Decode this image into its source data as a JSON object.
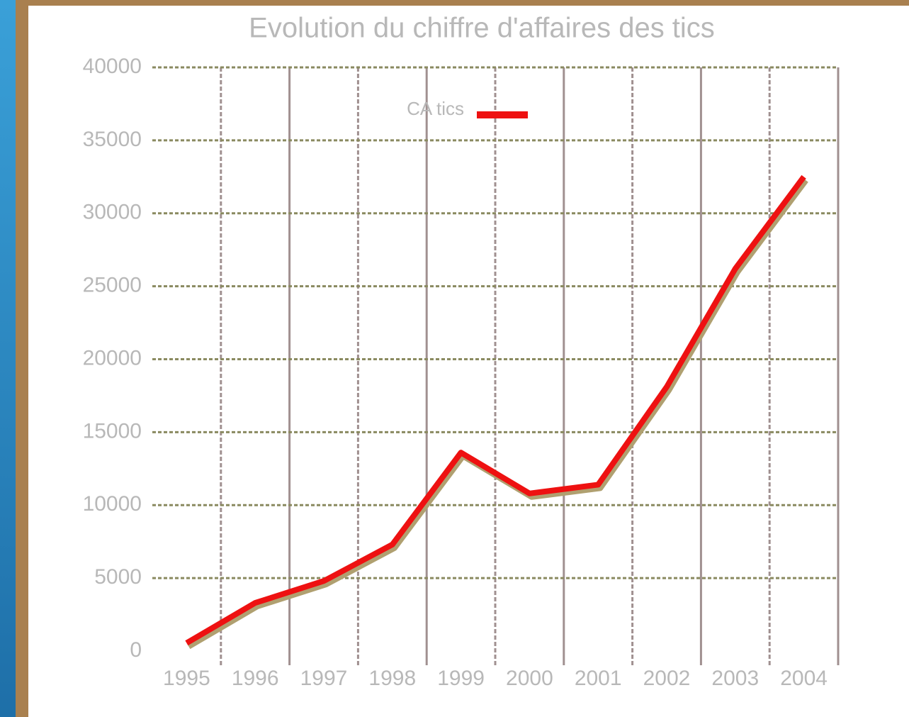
{
  "chart_data": {
    "type": "line",
    "title": "Evolution du chiffre d'affaires des tics",
    "categories": [
      "1995",
      "1996",
      "1997",
      "1998",
      "1999",
      "2000",
      "2001",
      "2002",
      "2003",
      "2004"
    ],
    "series": [
      {
        "name": "CA tics",
        "color": "#ee1111",
        "values": [
          550,
          3300,
          4800,
          7300,
          13600,
          10800,
          11400,
          18100,
          26200,
          32500
        ]
      }
    ],
    "ylim": [
      0,
      40000
    ],
    "yticks": [
      0,
      5000,
      10000,
      15000,
      20000,
      25000,
      30000,
      35000,
      40000
    ],
    "grid": true,
    "legend": "top"
  }
}
